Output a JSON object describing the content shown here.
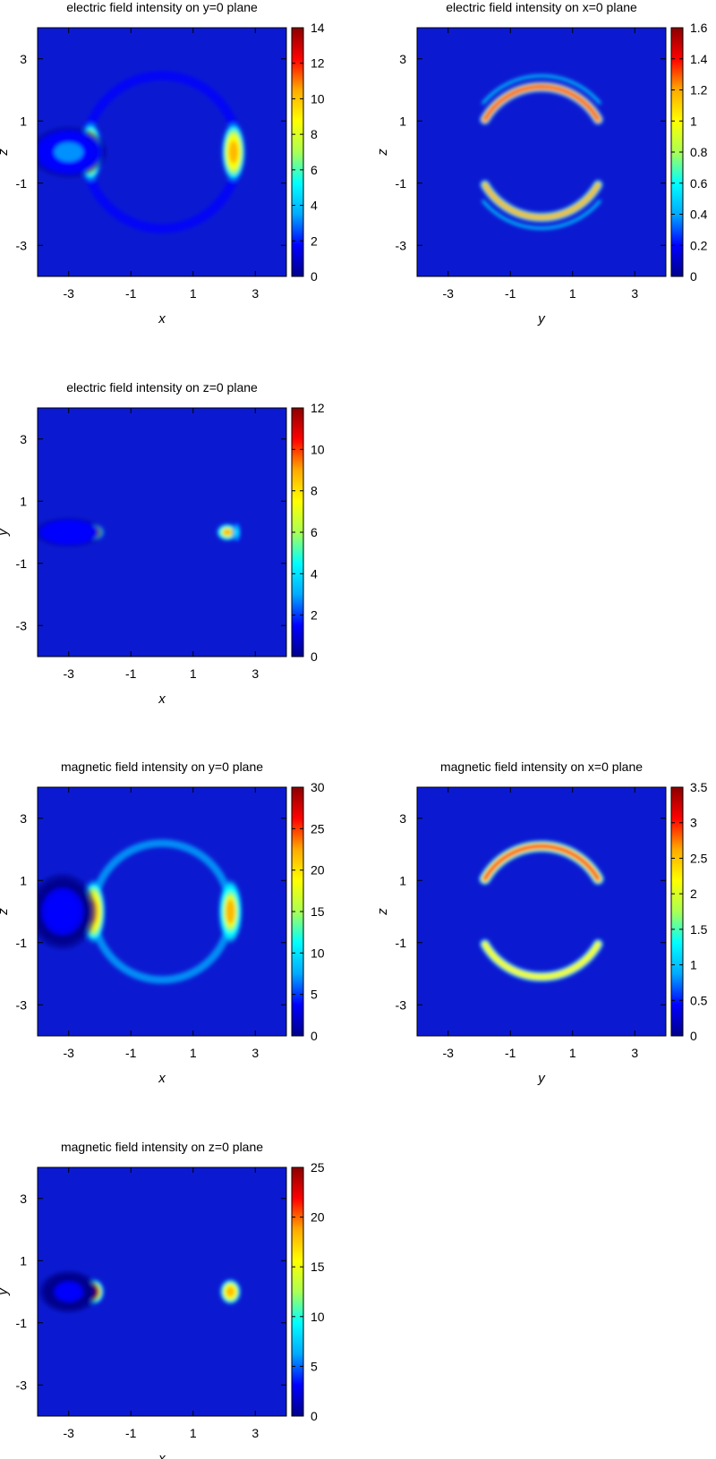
{
  "colorscale": [
    "#00008b",
    "#0000ff",
    "#00aaff",
    "#00ffff",
    "#aaff55",
    "#ffff00",
    "#ffaa00",
    "#ff0000",
    "#8b0000"
  ],
  "chart_data": [
    {
      "type": "heatmap",
      "title": "electric field intensity on y=0 plane",
      "xlabel": "x",
      "ylabel": "z",
      "xlim": [
        -4,
        4
      ],
      "ylim": [
        -4,
        4
      ],
      "xticks": [
        -3,
        -1,
        1,
        3
      ],
      "yticks": [
        3,
        1,
        -1,
        -3
      ],
      "colorbar": {
        "min": 0,
        "max": 14,
        "ticks": [
          0,
          2,
          4,
          6,
          8,
          10,
          12,
          14
        ],
        "tick_labels": [
          "0",
          "2",
          "4",
          "6",
          "8",
          "10",
          "12",
          "14"
        ]
      },
      "features": [
        {
          "kind": "ring",
          "cx": 0,
          "cy": 0,
          "rx": 2.4,
          "ry": 2.4,
          "value": 2.2,
          "width": 0.18
        },
        {
          "kind": "ring",
          "cx": 0,
          "cy": 0,
          "rx": 2.55,
          "ry": 2.55,
          "value": 1.6,
          "width": 0.12
        },
        {
          "kind": "spot",
          "cx": -2.3,
          "cy": 0,
          "rx": 0.28,
          "ry": 0.7,
          "value": 13
        },
        {
          "kind": "spot",
          "cx": 2.3,
          "cy": 0,
          "rx": 0.28,
          "ry": 0.7,
          "value": 11
        },
        {
          "kind": "spot",
          "cx": -3.0,
          "cy": 0,
          "rx": 0.9,
          "ry": 0.6,
          "value": 3
        }
      ]
    },
    {
      "type": "heatmap",
      "title": "electric field intensity on x=0 plane",
      "xlabel": "y",
      "ylabel": "z",
      "xlim": [
        -4,
        4
      ],
      "ylim": [
        -4,
        4
      ],
      "xticks": [
        -3,
        -1,
        1,
        3
      ],
      "yticks": [
        3,
        1,
        -1,
        -3
      ],
      "colorbar": {
        "min": 0,
        "max": 1.6,
        "ticks": [
          0,
          0.2,
          0.4,
          0.6,
          0.8,
          1,
          1.2,
          1.4,
          1.6
        ],
        "tick_labels": [
          "0",
          "0.2",
          "0.4",
          "0.6",
          "0.8",
          "1",
          "1.2",
          "1.4",
          "1.6"
        ]
      },
      "features": [
        {
          "kind": "arc",
          "cx": 0,
          "cy": 0,
          "r": 2.1,
          "a0": 30,
          "a1": 150,
          "value": 1.35,
          "width": 0.32
        },
        {
          "kind": "arc",
          "cx": 0,
          "cy": 0,
          "r": 2.1,
          "a0": 210,
          "a1": 330,
          "value": 1.1,
          "width": 0.3
        },
        {
          "kind": "arc",
          "cx": 0,
          "cy": 0,
          "r": 2.45,
          "a0": 40,
          "a1": 140,
          "value": 0.6,
          "width": 0.1
        },
        {
          "kind": "arc",
          "cx": 0,
          "cy": 0,
          "r": 2.45,
          "a0": 220,
          "a1": 320,
          "value": 0.5,
          "width": 0.1
        }
      ]
    },
    {
      "type": "heatmap",
      "title": "electric field intensity on z=0 plane",
      "xlabel": "x",
      "ylabel": "y",
      "xlim": [
        -4,
        4
      ],
      "ylim": [
        -4,
        4
      ],
      "xticks": [
        -3,
        -1,
        1,
        3
      ],
      "yticks": [
        3,
        1,
        -1,
        -3
      ],
      "colorbar": {
        "min": 0,
        "max": 12,
        "ticks": [
          0,
          2,
          4,
          6,
          8,
          10,
          12
        ],
        "tick_labels": [
          "0",
          "2",
          "4",
          "6",
          "8",
          "10",
          "12"
        ]
      },
      "features": [
        {
          "kind": "spot",
          "cx": -2.2,
          "cy": 0,
          "rx": 0.25,
          "ry": 0.2,
          "value": 11
        },
        {
          "kind": "spot",
          "cx": 2.1,
          "cy": 0,
          "rx": 0.25,
          "ry": 0.2,
          "value": 9
        },
        {
          "kind": "spot",
          "cx": -2.5,
          "cy": 0,
          "rx": 0.1,
          "ry": 0.25,
          "value": 5
        },
        {
          "kind": "spot",
          "cx": 2.4,
          "cy": 0,
          "rx": 0.1,
          "ry": 0.25,
          "value": 4
        },
        {
          "kind": "spot",
          "cx": -3.0,
          "cy": 0,
          "rx": 0.8,
          "ry": 0.35,
          "value": 2
        }
      ]
    },
    {
      "type": "heatmap",
      "title": "magnetic field intensity on y=0 plane",
      "xlabel": "x",
      "ylabel": "z",
      "xlim": [
        -4,
        4
      ],
      "ylim": [
        -4,
        4
      ],
      "xticks": [
        -3,
        -1,
        1,
        3
      ],
      "yticks": [
        3,
        1,
        -1,
        -3
      ],
      "colorbar": {
        "min": 0,
        "max": 30,
        "ticks": [
          0,
          5,
          10,
          15,
          20,
          25,
          30
        ],
        "tick_labels": [
          "0",
          "5",
          "10",
          "15",
          "20",
          "25",
          "30"
        ]
      },
      "features": [
        {
          "kind": "ring",
          "cx": 0,
          "cy": 0,
          "rx": 2.2,
          "ry": 2.2,
          "value": 6,
          "width": 0.25
        },
        {
          "kind": "spot",
          "cx": -2.2,
          "cy": 0,
          "rx": 0.28,
          "ry": 0.75,
          "value": 24
        },
        {
          "kind": "spot",
          "cx": 2.2,
          "cy": 0,
          "rx": 0.28,
          "ry": 0.75,
          "value": 22
        },
        {
          "kind": "spot",
          "cx": -3.2,
          "cy": 0,
          "rx": 0.8,
          "ry": 0.9,
          "value": 3
        }
      ]
    },
    {
      "type": "heatmap",
      "title": "magnetic field intensity on x=0 plane",
      "xlabel": "y",
      "ylabel": "z",
      "xlim": [
        -4,
        4
      ],
      "ylim": [
        -4,
        4
      ],
      "xticks": [
        -3,
        -1,
        1,
        3
      ],
      "yticks": [
        3,
        1,
        -1,
        -3
      ],
      "colorbar": {
        "min": 0,
        "max": 3.5,
        "ticks": [
          0,
          0.5,
          1,
          1.5,
          2,
          2.5,
          3,
          3.5
        ],
        "tick_labels": [
          "0",
          "0.5",
          "1",
          "1.5",
          "2",
          "2.5",
          "3",
          "3.5"
        ]
      },
      "features": [
        {
          "kind": "arc",
          "cx": 0,
          "cy": 0,
          "r": 2.1,
          "a0": 30,
          "a1": 150,
          "value": 3.2,
          "width": 0.35
        },
        {
          "kind": "arc",
          "cx": 0,
          "cy": 0,
          "r": 2.1,
          "a0": 210,
          "a1": 330,
          "value": 2.3,
          "width": 0.32
        }
      ]
    },
    {
      "type": "heatmap",
      "title": "magnetic field intensity on z=0 plane",
      "xlabel": "x",
      "ylabel": "y",
      "xlim": [
        -4,
        4
      ],
      "ylim": [
        -4,
        4
      ],
      "xticks": [
        -3,
        -1,
        1,
        3
      ],
      "yticks": [
        3,
        1,
        -1,
        -3
      ],
      "colorbar": {
        "min": 0,
        "max": 25,
        "ticks": [
          0,
          5,
          10,
          15,
          20,
          25
        ],
        "tick_labels": [
          "0",
          "5",
          "10",
          "15",
          "20",
          "25"
        ]
      },
      "features": [
        {
          "kind": "spot",
          "cx": -2.2,
          "cy": 0,
          "rx": 0.25,
          "ry": 0.3,
          "value": 24
        },
        {
          "kind": "spot",
          "cx": 2.2,
          "cy": 0,
          "rx": 0.25,
          "ry": 0.3,
          "value": 20
        },
        {
          "kind": "spot",
          "cx": -3.0,
          "cy": 0,
          "rx": 0.7,
          "ry": 0.5,
          "value": 2
        }
      ]
    }
  ]
}
